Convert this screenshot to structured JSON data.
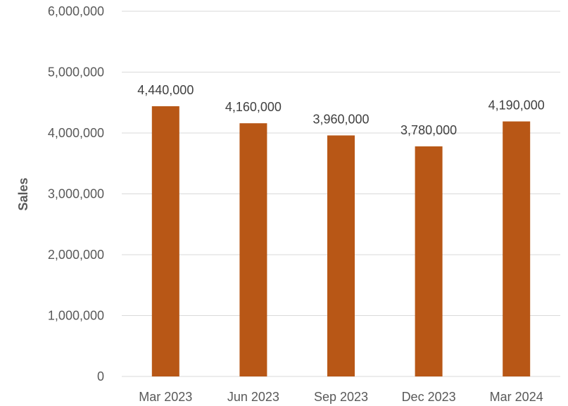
{
  "chart_data": {
    "type": "bar",
    "title": "",
    "xlabel": "",
    "ylabel": "Sales",
    "categories": [
      "Mar 2023",
      "Jun 2023",
      "Sep 2023",
      "Dec 2023",
      "Mar 2024"
    ],
    "values": [
      4440000,
      4160000,
      3960000,
      3780000,
      4190000
    ],
    "value_labels": [
      "4,440,000",
      "4,160,000",
      "3,960,000",
      "3,780,000",
      "4,190,000"
    ],
    "y_ticks": [
      0,
      1000000,
      2000000,
      3000000,
      4000000,
      5000000,
      6000000
    ],
    "y_tick_labels": [
      "0",
      "1,000,000",
      "2,000,000",
      "3,000,000",
      "4,000,000",
      "5,000,000",
      "6,000,000"
    ],
    "ylim": [
      0,
      6000000
    ],
    "grid": true,
    "legend": "none",
    "bar_color": "#b85716"
  }
}
